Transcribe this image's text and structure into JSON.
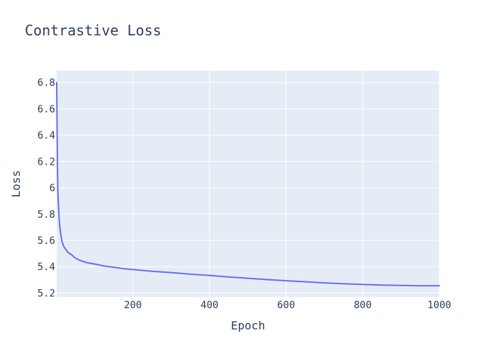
{
  "chart_data": {
    "type": "line",
    "title": "Contrastive Loss",
    "xlabel": "Epoch",
    "ylabel": "Loss",
    "xlim": [
      1,
      1000
    ],
    "ylim": [
      5.17,
      6.89
    ],
    "xticks": [
      200,
      400,
      600,
      800,
      1000
    ],
    "xtick_labels": [
      "200",
      "400",
      "600",
      "800",
      "1000"
    ],
    "yticks": [
      5.2,
      5.4,
      5.6,
      5.8,
      6.0,
      6.2,
      6.4,
      6.6,
      6.8
    ],
    "ytick_labels": [
      "5.2",
      "5.4",
      "5.6",
      "5.8",
      "6",
      "6.2",
      "6.4",
      "6.6",
      "6.8"
    ],
    "grid": true,
    "legend": false,
    "colors": {
      "line": "#636efa",
      "plot_bg": "#e5ecf6",
      "grid": "#ffffff",
      "text": "#2a3f5f"
    },
    "series": [
      {
        "x": [
          1,
          2,
          3,
          4,
          5,
          6,
          8,
          10,
          12,
          15,
          20,
          25,
          30,
          40,
          50,
          60,
          80,
          100,
          125,
          150,
          175,
          200,
          250,
          300,
          350,
          400,
          450,
          500,
          550,
          600,
          650,
          700,
          750,
          800,
          850,
          900,
          950,
          1000
        ],
        "y": [
          6.8,
          6.45,
          6.15,
          5.98,
          5.9,
          5.84,
          5.74,
          5.68,
          5.64,
          5.59,
          5.55,
          5.53,
          5.51,
          5.49,
          5.465,
          5.45,
          5.43,
          5.42,
          5.405,
          5.395,
          5.385,
          5.378,
          5.365,
          5.355,
          5.343,
          5.333,
          5.322,
          5.312,
          5.302,
          5.293,
          5.285,
          5.277,
          5.27,
          5.265,
          5.26,
          5.257,
          5.255,
          5.255
        ]
      }
    ]
  }
}
